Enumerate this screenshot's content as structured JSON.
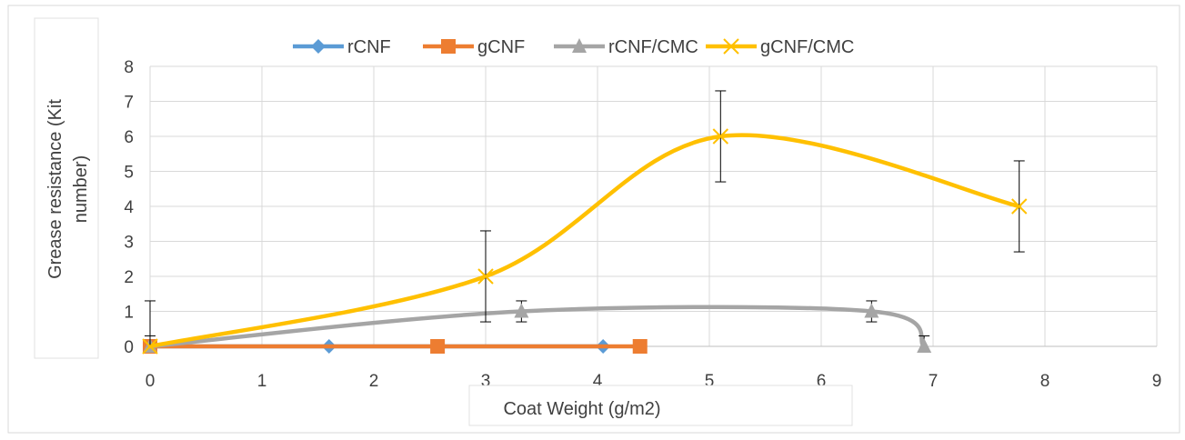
{
  "chart_data": {
    "type": "scatter",
    "title": "",
    "xlabel": "Coat Weight (g/m2)",
    "ylabel": "Grease resistance (Kit number)",
    "xlim": [
      0,
      9
    ],
    "ylim": [
      0,
      8
    ],
    "x_ticks": [
      "0",
      "1",
      "2",
      "3",
      "4",
      "5",
      "6",
      "7",
      "8",
      "9"
    ],
    "y_ticks": [
      "0",
      "1",
      "2",
      "3",
      "4",
      "5",
      "6",
      "7",
      "8"
    ],
    "grid": true,
    "legend_position": "top",
    "series": [
      {
        "name": "rCNF",
        "color": "#5B9BD5",
        "marker": "diamond",
        "smooth": false,
        "points": [
          {
            "x": 0,
            "y": 0,
            "err": 0.3
          },
          {
            "x": 1.6,
            "y": 0,
            "err": 0
          },
          {
            "x": 4.05,
            "y": 0,
            "err": 0
          }
        ]
      },
      {
        "name": "gCNF",
        "color": "#ED7D31",
        "marker": "square",
        "smooth": false,
        "points": [
          {
            "x": 0,
            "y": 0,
            "err": 0
          },
          {
            "x": 2.57,
            "y": 0,
            "err": 0
          },
          {
            "x": 4.38,
            "y": 0,
            "err": 0
          }
        ]
      },
      {
        "name": "rCNF/CMC",
        "color": "#A5A5A5",
        "marker": "triangle",
        "smooth": true,
        "points": [
          {
            "x": 0,
            "y": 0,
            "err": 0
          },
          {
            "x": 3.32,
            "y": 1,
            "err": 0.3
          },
          {
            "x": 6.45,
            "y": 1,
            "err": 0.3
          },
          {
            "x": 6.92,
            "y": 0,
            "err": 0.3
          }
        ]
      },
      {
        "name": "gCNF/CMC",
        "color": "#FFC000",
        "marker": "x",
        "smooth": true,
        "points": [
          {
            "x": 0,
            "y": 0,
            "err": 1.3
          },
          {
            "x": 3.0,
            "y": 2,
            "err": 1.3
          },
          {
            "x": 5.1,
            "y": 6,
            "err": 1.3
          },
          {
            "x": 7.77,
            "y": 4,
            "err": 1.3
          }
        ]
      }
    ]
  }
}
